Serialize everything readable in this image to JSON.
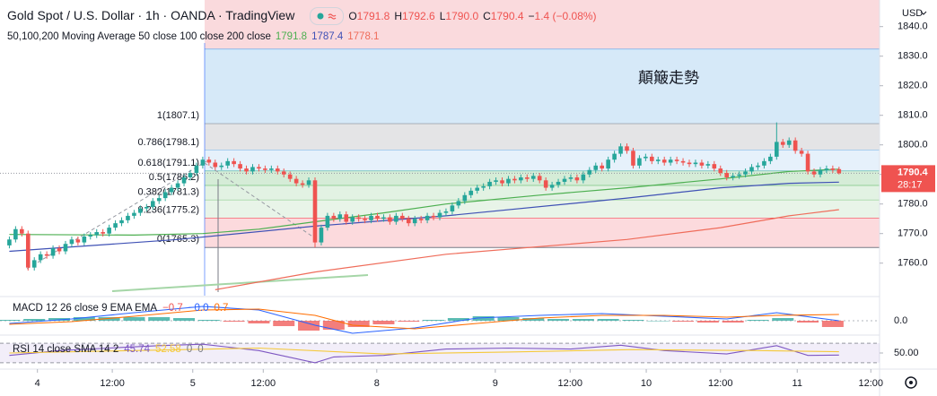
{
  "chart_data": [
    {
      "type": "candlestick",
      "title": "Gold Spot / U.S. Dollar · 1h · OANDA · TradingView",
      "ohlc_labels": [
        "O1791.8",
        "H1792.6",
        "L1790.0",
        "C1790.4",
        "−1.4 (−0.08%)"
      ],
      "indicator": "50,100,200 Moving Average 50 close 100 close 200 close",
      "annotation": "顛簸走勢",
      "currency": "USD",
      "price_label": "1790.4",
      "countdown": "28:17",
      "up_color": "#26a69a",
      "down_color": "#ef5350",
      "xlim": [
        -1.5,
        139.5
      ],
      "xticks": [
        {
          "value": 4.5,
          "label": "4"
        },
        {
          "value": 16.5,
          "label": "12:00"
        },
        {
          "value": 29.4,
          "label": "5"
        },
        {
          "value": 40.7,
          "label": "12:00"
        },
        {
          "value": 58.9,
          "label": "8"
        },
        {
          "value": 77.9,
          "label": "9"
        },
        {
          "value": 89.9,
          "label": "12:00"
        },
        {
          "value": 102.1,
          "label": "10"
        },
        {
          "value": 114,
          "label": "12:00"
        },
        {
          "value": 126.3,
          "label": "11"
        },
        {
          "value": 138.1,
          "label": "12:00"
        }
      ],
      "ylim": [
        1749,
        1849
      ],
      "yticks": [
        {
          "value": 1760,
          "label": "1760.0"
        },
        {
          "value": 1770,
          "label": "1770.0"
        },
        {
          "value": 1780,
          "label": "1780.0"
        },
        {
          "value": 1790,
          "label": "1790.0"
        },
        {
          "value": 1800,
          "label": "1800.0"
        },
        {
          "value": 1810,
          "label": "1810.0"
        },
        {
          "value": 1820,
          "label": "1820.0"
        },
        {
          "value": 1830,
          "label": "1830.0"
        },
        {
          "value": 1840,
          "label": "1840.0"
        }
      ],
      "open": [
        1766,
        1768,
        1771.5,
        1770,
        1758.5,
        1761,
        1763,
        1762.5,
        1765,
        1764,
        1766.5,
        1768,
        1767,
        1769,
        1769.5,
        1770.5,
        1770,
        1772,
        1773.5,
        1774.5,
        1776,
        1777,
        1778.5,
        1779,
        1781,
        1782,
        1784,
        1785.5,
        1787,
        1789,
        1790.5,
        1793,
        1795,
        1794,
        1792.5,
        1793,
        1794.5,
        1793.5,
        1792,
        1791,
        1792.5,
        1792,
        1791.5,
        1792,
        1791,
        1790,
        1788.5,
        1787,
        1786.5,
        1788,
        1767,
        1772,
        1776,
        1775,
        1776.5,
        1774,
        1775.5,
        1775,
        1774.5,
        1776,
        1775,
        1775.5,
        1774,
        1776,
        1775,
        1773.5,
        1775,
        1774.5,
        1776,
        1775.5,
        1777,
        1777.5,
        1779.5,
        1781,
        1783,
        1784.5,
        1785.5,
        1786,
        1787.5,
        1788,
        1787,
        1788.5,
        1788,
        1789,
        1788.5,
        1789.5,
        1788,
        1785.5,
        1786.5,
        1787.5,
        1788.5,
        1789,
        1788,
        1790,
        1791.5,
        1793,
        1792,
        1795,
        1797,
        1799.5,
        1798,
        1793,
        1795.5,
        1796,
        1794.5,
        1795,
        1794,
        1795,
        1794.5,
        1794,
        1793.5,
        1794,
        1793,
        1793.5,
        1792,
        1790.5,
        1789,
        1789.5,
        1790,
        1791,
        1792.5,
        1793,
        1794.5,
        1796,
        1801,
        1800,
        1801.5,
        1798,
        1797,
        1791,
        1790,
        1791.5,
        1792,
        1791.8
      ],
      "high": [
        1769,
        1772.5,
        1772.5,
        1771,
        1762,
        1764,
        1764,
        1766,
        1766,
        1767.5,
        1769,
        1769,
        1770,
        1770.5,
        1771.5,
        1771.5,
        1773,
        1774.5,
        1775.5,
        1777,
        1778,
        1779.5,
        1780,
        1782,
        1783,
        1785,
        1786.5,
        1788,
        1790,
        1791.5,
        1794,
        1796,
        1796,
        1795,
        1794,
        1795.5,
        1795.5,
        1794.5,
        1793,
        1793.5,
        1793.5,
        1793,
        1793,
        1793,
        1792,
        1791,
        1789.5,
        1788,
        1789,
        1789,
        1773,
        1777,
        1777,
        1777.5,
        1777.5,
        1776.5,
        1776.5,
        1776,
        1777,
        1777,
        1776.5,
        1776.5,
        1777,
        1777,
        1776,
        1776,
        1776,
        1777,
        1777,
        1778,
        1778.5,
        1780.5,
        1782,
        1784,
        1785.5,
        1786.5,
        1787,
        1788.5,
        1789,
        1789,
        1789.5,
        1789.5,
        1790,
        1790,
        1790.5,
        1790.5,
        1789,
        1787.5,
        1788.5,
        1789.5,
        1790,
        1790,
        1791,
        1792.5,
        1794,
        1794,
        1796,
        1798,
        1800.5,
        1800.5,
        1799,
        1796.5,
        1797,
        1797,
        1796,
        1796,
        1796,
        1796,
        1795.5,
        1795,
        1795,
        1795,
        1794.5,
        1794.5,
        1793,
        1791.5,
        1790.5,
        1791,
        1792,
        1793.5,
        1794,
        1795.5,
        1797,
        1807.6,
        1802,
        1802.5,
        1802.5,
        1799,
        1798,
        1792,
        1792.5,
        1793,
        1793,
        1792.6
      ],
      "low": [
        1765,
        1767,
        1769,
        1757.5,
        1757.5,
        1760,
        1761.5,
        1761.5,
        1763,
        1763,
        1765.5,
        1766,
        1766,
        1768,
        1768.5,
        1769,
        1769,
        1771,
        1772.5,
        1773.5,
        1775,
        1776,
        1777.5,
        1778,
        1780,
        1781,
        1783,
        1784.5,
        1786,
        1788,
        1789.5,
        1792,
        1793,
        1791.5,
        1791.5,
        1792,
        1792.5,
        1791,
        1790,
        1790,
        1791,
        1790.5,
        1790.5,
        1790,
        1789,
        1787.5,
        1786,
        1785.5,
        1785.5,
        1765.3,
        1766,
        1771,
        1774,
        1774,
        1773,
        1773,
        1774,
        1773.5,
        1773.5,
        1774,
        1774,
        1773,
        1773,
        1774,
        1772.5,
        1772.5,
        1773.5,
        1773.5,
        1774.5,
        1774.5,
        1776,
        1776.5,
        1778.5,
        1780,
        1782,
        1783.5,
        1784.5,
        1785,
        1786.5,
        1786,
        1786,
        1787,
        1787,
        1787.5,
        1787.5,
        1787,
        1784.5,
        1784.5,
        1785.5,
        1786.5,
        1787.5,
        1787,
        1787,
        1789,
        1790.5,
        1791,
        1791,
        1794,
        1796,
        1797,
        1792,
        1792,
        1794.5,
        1793.5,
        1793.5,
        1793,
        1793,
        1793.5,
        1793,
        1792.5,
        1792.5,
        1792,
        1792,
        1791,
        1789.5,
        1788,
        1788,
        1788.5,
        1789,
        1790,
        1791.5,
        1792,
        1793.5,
        1795,
        1799,
        1799,
        1797,
        1796,
        1790,
        1789,
        1789,
        1790.5,
        1790.5,
        1790.0
      ],
      "close": [
        1768,
        1771.5,
        1770,
        1758.5,
        1761,
        1763,
        1762.5,
        1765,
        1764,
        1766.5,
        1768,
        1767,
        1769,
        1769.5,
        1770.5,
        1770,
        1772,
        1773.5,
        1774.5,
        1776,
        1777,
        1778.5,
        1779,
        1781,
        1782,
        1784,
        1785.5,
        1787,
        1789,
        1790.5,
        1793,
        1795,
        1794,
        1792.5,
        1793,
        1794.5,
        1793.5,
        1792,
        1791,
        1792.5,
        1792,
        1791.5,
        1792,
        1791,
        1790,
        1788.5,
        1787,
        1786.5,
        1788,
        1767,
        1772,
        1776,
        1775,
        1776.5,
        1774,
        1775.5,
        1775,
        1774.5,
        1776,
        1775,
        1775.5,
        1774,
        1776,
        1775,
        1773.5,
        1775,
        1774.5,
        1776,
        1775.5,
        1777,
        1777.5,
        1779.5,
        1781,
        1783,
        1784.5,
        1785.5,
        1786,
        1787.5,
        1788,
        1787,
        1788.5,
        1788,
        1789,
        1788.5,
        1789.5,
        1788,
        1785.5,
        1786.5,
        1787.5,
        1788.5,
        1789,
        1788,
        1790,
        1791.5,
        1793,
        1792,
        1795,
        1797,
        1799.5,
        1798,
        1793,
        1795.5,
        1796,
        1794.5,
        1795,
        1794,
        1795,
        1794.5,
        1794,
        1793.5,
        1794,
        1793,
        1793.5,
        1792,
        1790.5,
        1789,
        1789.5,
        1790,
        1791,
        1792.5,
        1793,
        1794.5,
        1796,
        1801,
        1800,
        1801.5,
        1798,
        1797,
        1791,
        1790,
        1791.5,
        1792,
        1791.5,
        1790.4
      ],
      "ma": [
        {
          "color": "#4caf50",
          "last_label": "1791.8",
          "x": [
            0,
            20,
            31,
            40,
            49,
            60,
            70,
            85,
            99,
            114,
            125,
            133
          ],
          "values": [
            1769.7,
            1769.5,
            1770,
            1771.5,
            1774,
            1777,
            1780,
            1783,
            1785.5,
            1788.5,
            1791,
            1791.8
          ]
        },
        {
          "color": "#3f51b5",
          "last_label": "1787.4",
          "x": [
            0,
            27,
            49,
            70,
            99,
            114,
            125,
            133
          ],
          "values": [
            1764,
            1768,
            1772.5,
            1776,
            1782,
            1785.5,
            1787,
            1787.4
          ]
        },
        {
          "color": "#ef6c5a",
          "last_label": "1778.1",
          "x": [
            33,
            49,
            70,
            99,
            114,
            125,
            133
          ],
          "values": [
            1751,
            1757,
            1763,
            1768,
            1772,
            1776,
            1778.1
          ]
        }
      ],
      "fib": [
        {
          "value": 1832.3,
          "color": "#2196f3",
          "fill": "#fadadd"
        },
        {
          "label": "1(1807.1)",
          "value": 1807.1,
          "color": "#787b86",
          "fill": "#d6e9f8"
        },
        {
          "label": "0.786(1798.1)",
          "value": 1798.1,
          "color": "#64b5f6",
          "fill": "#e4e4e6"
        },
        {
          "label": "0.618(1791.1)",
          "value": 1791.1,
          "color": "#089981",
          "fill": "#e6f1fb"
        },
        {
          "label": "0.5(1786.2)",
          "value": 1786.2,
          "color": "#4caf50",
          "fill": "#d5ecd7"
        },
        {
          "label": "0.382(1781.3)",
          "value": 1781.3,
          "color": "#81c784",
          "fill": "#e2f2e3"
        },
        {
          "label": "0.236(1775.2)",
          "value": 1775.2,
          "color": "#f23645",
          "fill": "#e8f4e8"
        },
        {
          "label": "0(1765.3)",
          "value": 1765.3,
          "color": "#787b86",
          "fill": "#fcdadd"
        }
      ]
    },
    {
      "type": "macd",
      "label": "MACD 12 26 close 9 EMA EMA",
      "ylim": [
        -1.4,
        2.6
      ],
      "yticks": [
        {
          "value": 0,
          "label": "0.0"
        }
      ],
      "series": [
        {
          "style": "histogram",
          "color": "#ef5350",
          "up_color": "#26a69a",
          "last_label": "−0.7",
          "x": [
            0,
            4,
            8,
            12,
            16,
            20,
            24,
            28,
            32,
            36,
            40,
            44,
            48,
            52,
            56,
            60,
            64,
            68,
            72,
            76,
            80,
            84,
            88,
            92,
            96,
            100,
            104,
            108,
            112,
            116,
            120,
            124,
            128,
            132
          ],
          "values": [
            0.1,
            0.2,
            0.3,
            0.4,
            0.4,
            0.4,
            0.4,
            0.3,
            0.1,
            -0.1,
            -0.3,
            -0.6,
            -1.1,
            -1.0,
            -0.7,
            -0.4,
            -0.1,
            0.1,
            0.3,
            0.5,
            0.4,
            0.3,
            0.2,
            0.2,
            0.2,
            0.1,
            0,
            -0.1,
            -0.2,
            -0.2,
            0.1,
            0.3,
            -0.2,
            -0.7
          ]
        },
        {
          "style": "line",
          "color": "#2962ff",
          "last_label": "−0.0",
          "x": [
            0,
            10,
            20,
            31,
            40,
            49,
            55,
            65,
            75,
            85,
            95,
            105,
            115,
            123,
            133
          ],
          "values": [
            -0.3,
            0.2,
            0.9,
            1.6,
            1.2,
            -0.5,
            -1.4,
            -0.8,
            0.3,
            0.6,
            0.8,
            0.5,
            0.2,
            0.9,
            0.0
          ]
        },
        {
          "style": "line",
          "color": "#ff6d00",
          "last_label": "0.7",
          "x": [
            0,
            10,
            20,
            31,
            40,
            49,
            55,
            65,
            75,
            85,
            95,
            105,
            115,
            123,
            133
          ],
          "values": [
            -0.4,
            -0.1,
            0.5,
            1.2,
            1.3,
            0.6,
            -0.5,
            -0.9,
            -0.3,
            0.3,
            0.6,
            0.6,
            0.4,
            0.6,
            0.7
          ]
        }
      ]
    },
    {
      "type": "rsi",
      "label": "RSI 14 close SMA 14 2",
      "extra_labels": [
        "0",
        "0"
      ],
      "ylim": [
        17,
        83
      ],
      "yticks": [
        {
          "value": 50,
          "label": "50.00"
        }
      ],
      "bands": [
        30,
        70
      ],
      "series": [
        {
          "color": "#7e57c2",
          "last_label": "45.74",
          "x": [
            0,
            8,
            16,
            24,
            31,
            40,
            49,
            52,
            60,
            70,
            80,
            90,
            98,
            105,
            115,
            123,
            128,
            133
          ],
          "values": [
            45,
            55,
            60,
            65,
            68,
            55,
            30,
            42,
            45,
            58,
            60,
            58,
            66,
            55,
            48,
            65,
            45,
            45.74
          ]
        },
        {
          "color": "#f5c93a",
          "last_label": "52.58",
          "x": [
            0,
            20,
            40,
            60,
            80,
            100,
            120,
            133
          ],
          "values": [
            50,
            55,
            60,
            48,
            52,
            57,
            55,
            52.58
          ]
        }
      ]
    }
  ]
}
